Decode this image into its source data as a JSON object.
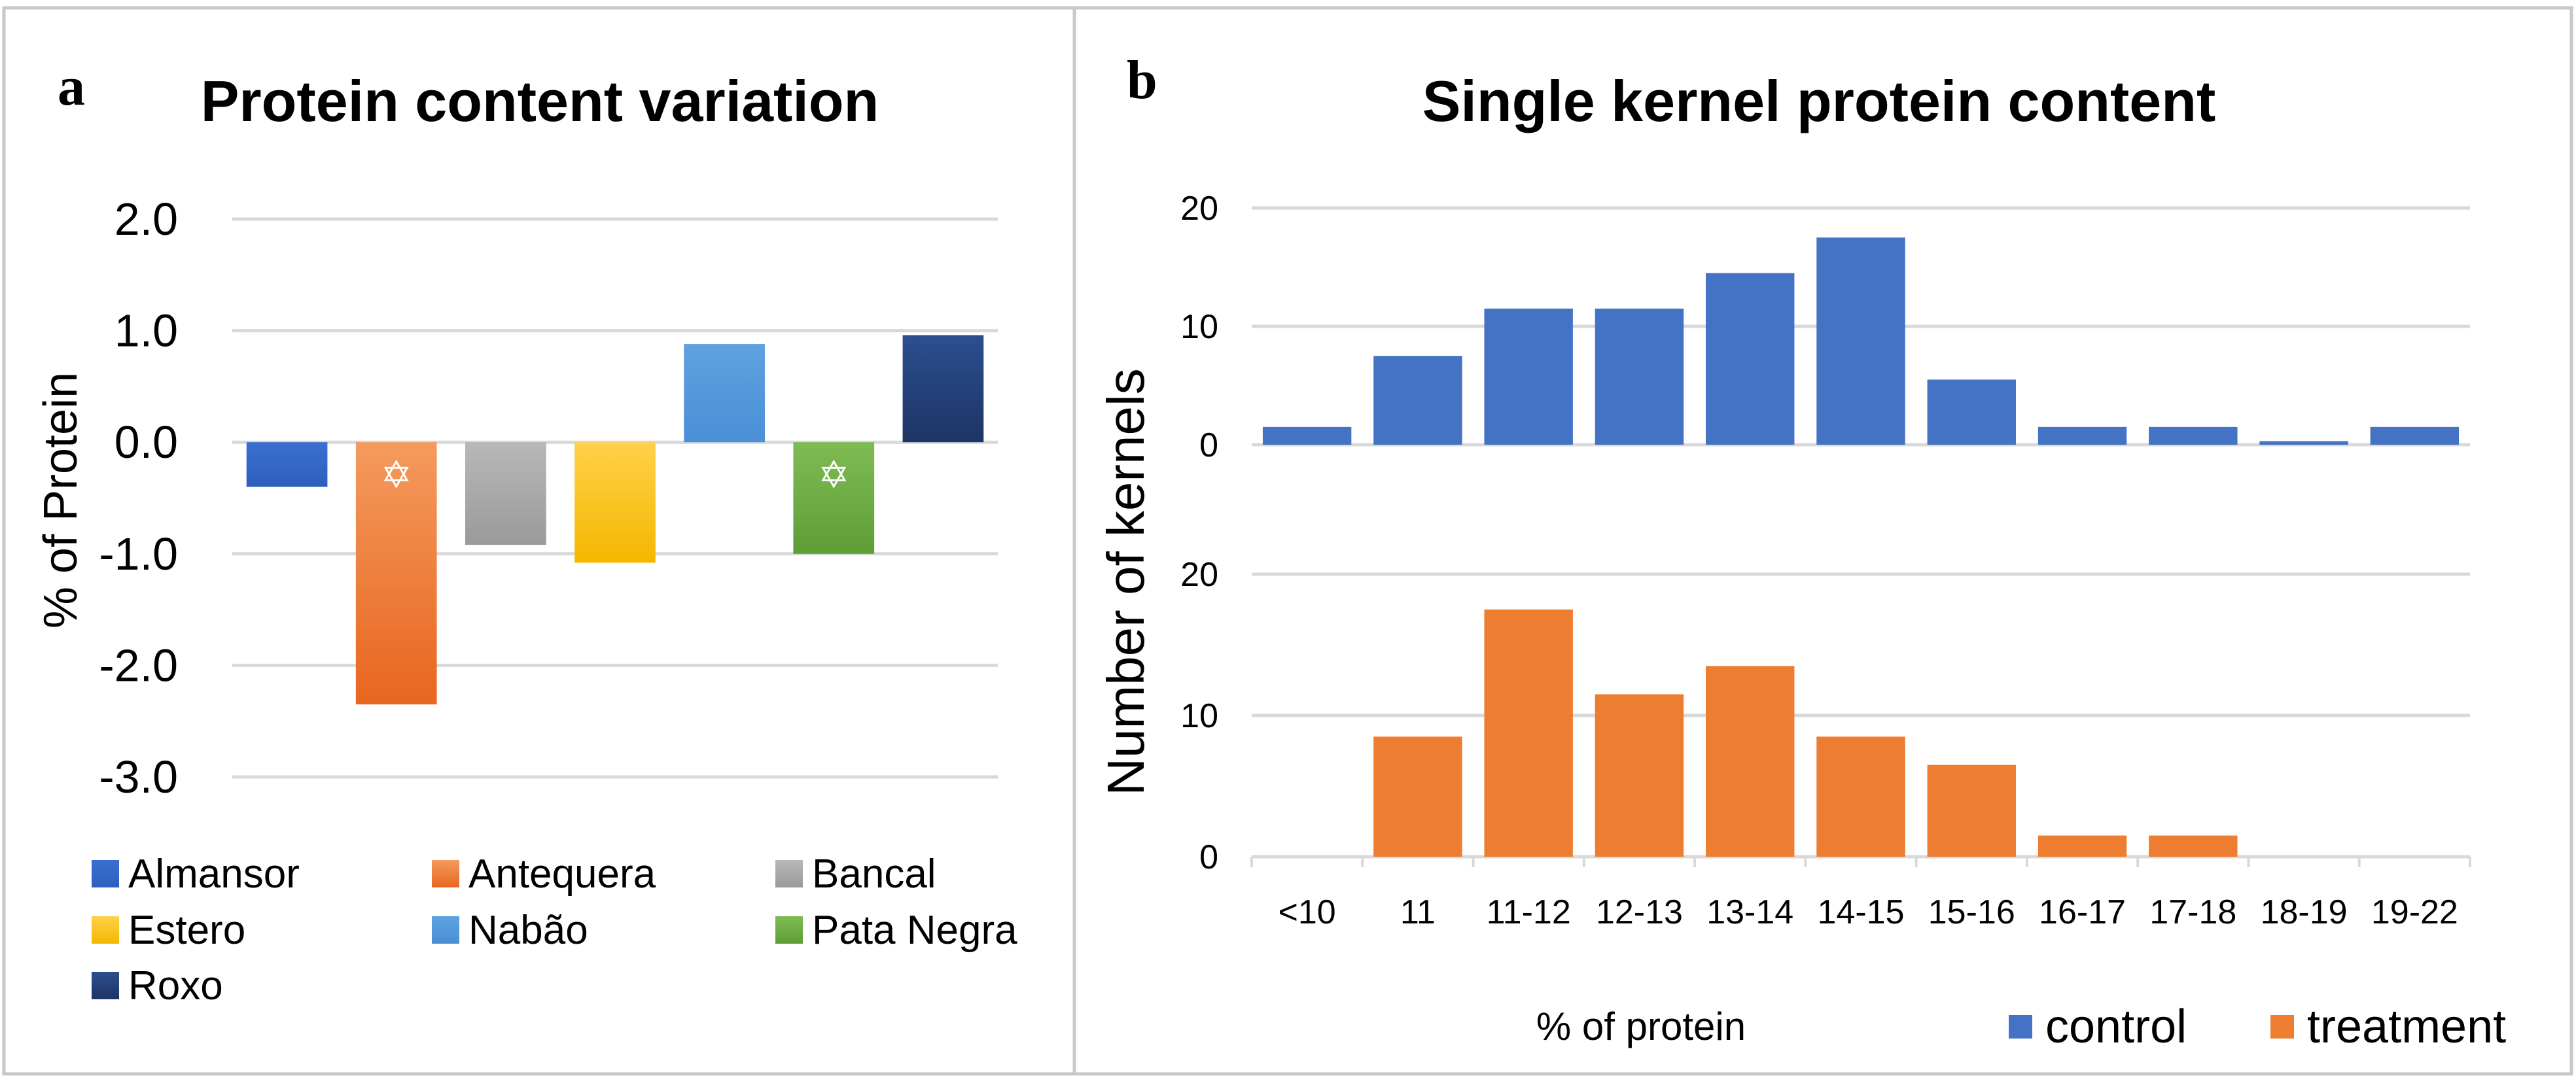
{
  "chart_data": [
    {
      "panel_label": "a",
      "type": "bar",
      "title": "Protein content variation",
      "ylabel": "% of Protein",
      "ylim": [
        -3.0,
        2.0
      ],
      "yticks": [
        "2.0",
        "1.0",
        "0.0",
        "-1.0",
        "-2.0",
        "-3.0"
      ],
      "grid": true,
      "legend_position": "bottom",
      "series": [
        {
          "name": "Almansor",
          "value": -0.4,
          "color": "#4472c4",
          "significant": false
        },
        {
          "name": "Antequera",
          "value": -2.35,
          "color": "#ed7d31",
          "significant": true
        },
        {
          "name": "Bancal",
          "value": -0.92,
          "color": "#a5a5a5",
          "significant": false
        },
        {
          "name": "Estero",
          "value": -1.08,
          "color": "#ffc000",
          "significant": false
        },
        {
          "name": "Nabão",
          "value": 0.88,
          "color": "#5b9bd5",
          "significant": false
        },
        {
          "name": "Pata Negra",
          "value": -1.0,
          "color": "#70ad47",
          "significant": true
        },
        {
          "name": "Roxo",
          "value": 0.96,
          "color": "#264478",
          "significant": false
        }
      ],
      "significance_marker": "✡"
    },
    {
      "panel_label": "b",
      "type": "bar",
      "title": "Single kernel protein content",
      "ylabel": "Number of kernels",
      "xlabel": "% of protein",
      "categories": [
        "<10",
        "11",
        "11-12",
        "12-13",
        "13-14",
        "14-15",
        "15-16",
        "16-17",
        "17-18",
        "18-19",
        "19-22"
      ],
      "ylim": [
        0,
        20
      ],
      "yticks": [
        "20",
        "10",
        "0"
      ],
      "grid": true,
      "legend_position": "bottom-right",
      "series": [
        {
          "name": "control",
          "color": "#4472c4",
          "values": [
            1.5,
            7.5,
            11.5,
            11.5,
            14.5,
            17.5,
            5.5,
            1.5,
            1.5,
            0.3,
            1.5
          ]
        },
        {
          "name": "treatment",
          "color": "#ed7d31",
          "values": [
            0,
            8.5,
            17.5,
            11.5,
            13.5,
            8.5,
            6.5,
            1.5,
            1.5,
            0,
            0
          ]
        }
      ]
    }
  ]
}
